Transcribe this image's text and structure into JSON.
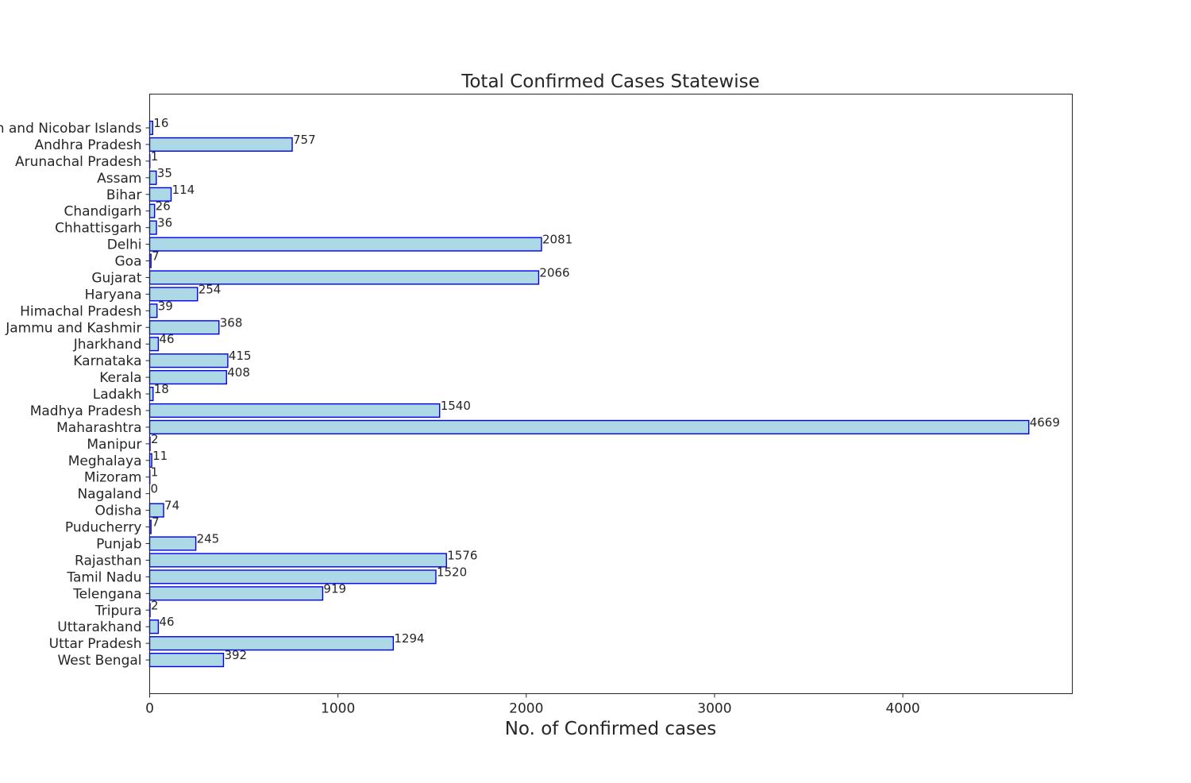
{
  "chart_data": {
    "type": "bar",
    "orientation": "horizontal",
    "title": "Total Confirmed Cases Statewise",
    "xlabel": "No. of Confirmed cases",
    "ylabel": "",
    "xlim": [
      0,
      4900
    ],
    "xticks": [
      0,
      1000,
      2000,
      3000,
      4000
    ],
    "grid": false,
    "categories": [
      "Andaman and Nicobar Islands",
      "Andhra Pradesh",
      "Arunachal Pradesh",
      "Assam",
      "Bihar",
      "Chandigarh",
      "Chhattisgarh",
      "Delhi",
      "Goa",
      "Gujarat",
      "Haryana",
      "Himachal Pradesh",
      "Jammu and Kashmir",
      "Jharkhand",
      "Karnataka",
      "Kerala",
      "Ladakh",
      "Madhya Pradesh",
      "Maharashtra",
      "Manipur",
      "Meghalaya",
      "Mizoram",
      "Nagaland",
      "Odisha",
      "Puducherry",
      "Punjab",
      "Rajasthan",
      "Tamil Nadu",
      "Telengana",
      "Tripura",
      "Uttarakhand",
      "Uttar Pradesh",
      "West Bengal"
    ],
    "values": [
      16,
      757,
      1,
      35,
      114,
      26,
      36,
      2081,
      7,
      2066,
      254,
      39,
      368,
      46,
      415,
      408,
      18,
      1540,
      4669,
      2,
      11,
      1,
      0,
      74,
      7,
      245,
      1576,
      1520,
      919,
      2,
      46,
      1294,
      392
    ],
    "colors": {
      "bar_fill": "#add8e6",
      "bar_edge": "#0000ee"
    }
  }
}
